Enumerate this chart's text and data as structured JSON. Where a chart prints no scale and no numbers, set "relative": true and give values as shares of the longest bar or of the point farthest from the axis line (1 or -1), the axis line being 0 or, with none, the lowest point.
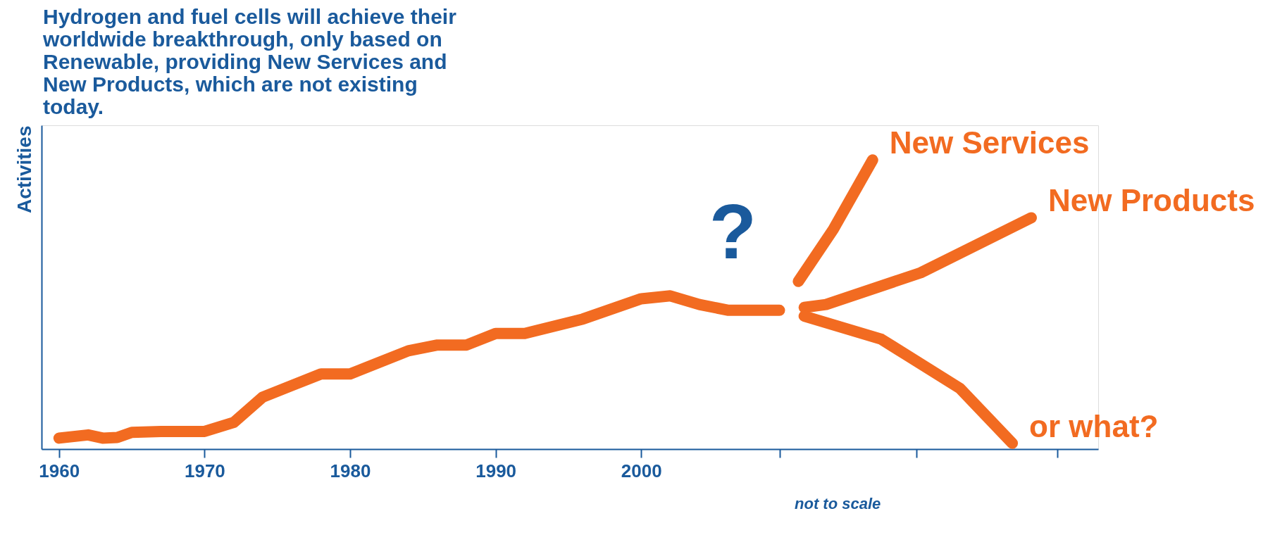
{
  "chart_data": {
    "type": "line",
    "relative": true,
    "title": "Hydrogen and fuel cells will achieve their\nworldwide breakthrough, only based on\nRenewable, providing New Services and\nNew Products, which are not existing\ntoday.",
    "ylabel": "Activities",
    "xlim": [
      1958.8,
      2031.4
    ],
    "xticks": [
      1960,
      1970,
      1980,
      1990,
      2000,
      {
        "value": 2009.5,
        "label": null
      },
      {
        "value": 2018.9,
        "label": null
      },
      {
        "value": 2028.6,
        "label": null
      }
    ],
    "series": [
      {
        "color": "#f26b21",
        "x": [
          1960,
          1962,
          1963,
          1964,
          1965,
          1967,
          1970,
          1972,
          1974,
          1976,
          1978,
          1980,
          1984,
          1986,
          1988,
          1990,
          1992,
          1996,
          2000,
          2002,
          2004,
          2006,
          2008,
          2009.5
        ],
        "values": [
          0.038,
          0.049,
          0.038,
          0.04,
          0.058,
          0.061,
          0.061,
          0.092,
          0.18,
          0.22,
          0.26,
          0.26,
          0.34,
          0.36,
          0.36,
          0.4,
          0.4,
          0.45,
          0.52,
          0.53,
          0.5,
          0.48,
          0.48,
          0.48
        ]
      },
      {
        "name": "New Services",
        "color": "#f26b21",
        "x": [
          2010.8,
          2013.2,
          2015.9
        ],
        "values": [
          0.58,
          0.76,
          1.0
        ]
      },
      {
        "name": "New Products",
        "color": "#f26b21",
        "x": [
          2011.2,
          2012.7,
          2019.2,
          2026.8
        ],
        "values": [
          0.49,
          0.5,
          0.61,
          0.8
        ]
      },
      {
        "name": "or what?",
        "color": "#f26b21",
        "x": [
          2011.2,
          2016.5,
          2021.9,
          2025.5
        ],
        "values": [
          0.46,
          0.38,
          0.21,
          0.02
        ]
      }
    ],
    "annotations": [
      "?",
      "not to scale"
    ],
    "line_style": "solid",
    "marker": "none",
    "grid": false
  }
}
